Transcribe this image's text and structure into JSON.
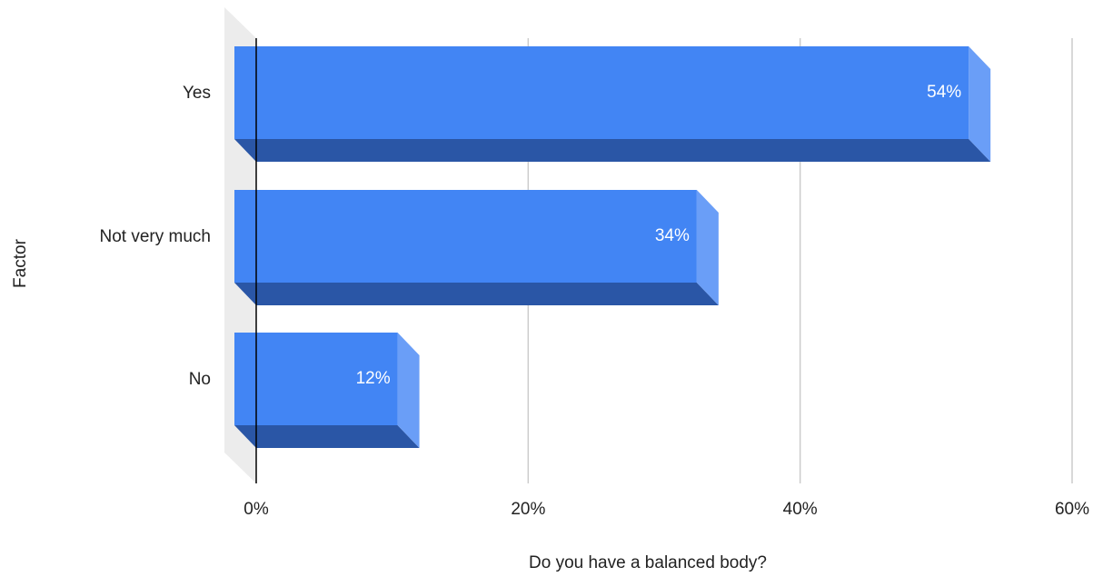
{
  "chart_data": {
    "type": "bar",
    "orientation": "horizontal",
    "style": "3d",
    "categories": [
      "Yes",
      "Not very much",
      "No"
    ],
    "values": [
      54,
      34,
      12
    ],
    "data_labels": [
      "54%",
      "34%",
      "12%"
    ],
    "xlabel": "Do you have a balanced body?",
    "ylabel": "Factor",
    "xlim": [
      0,
      60
    ],
    "x_ticks": [
      0,
      20,
      40,
      60
    ],
    "x_tick_labels": [
      "0%",
      "20%",
      "40%",
      "60%"
    ],
    "grid": true,
    "legend": "none",
    "colors": {
      "bar_front": "#4285f4",
      "bar_bottom": "#2a56a6",
      "bar_side": "#6a9ef7",
      "gridline": "#cccccc",
      "axis": "#000000",
      "floor": "#ececec"
    }
  }
}
